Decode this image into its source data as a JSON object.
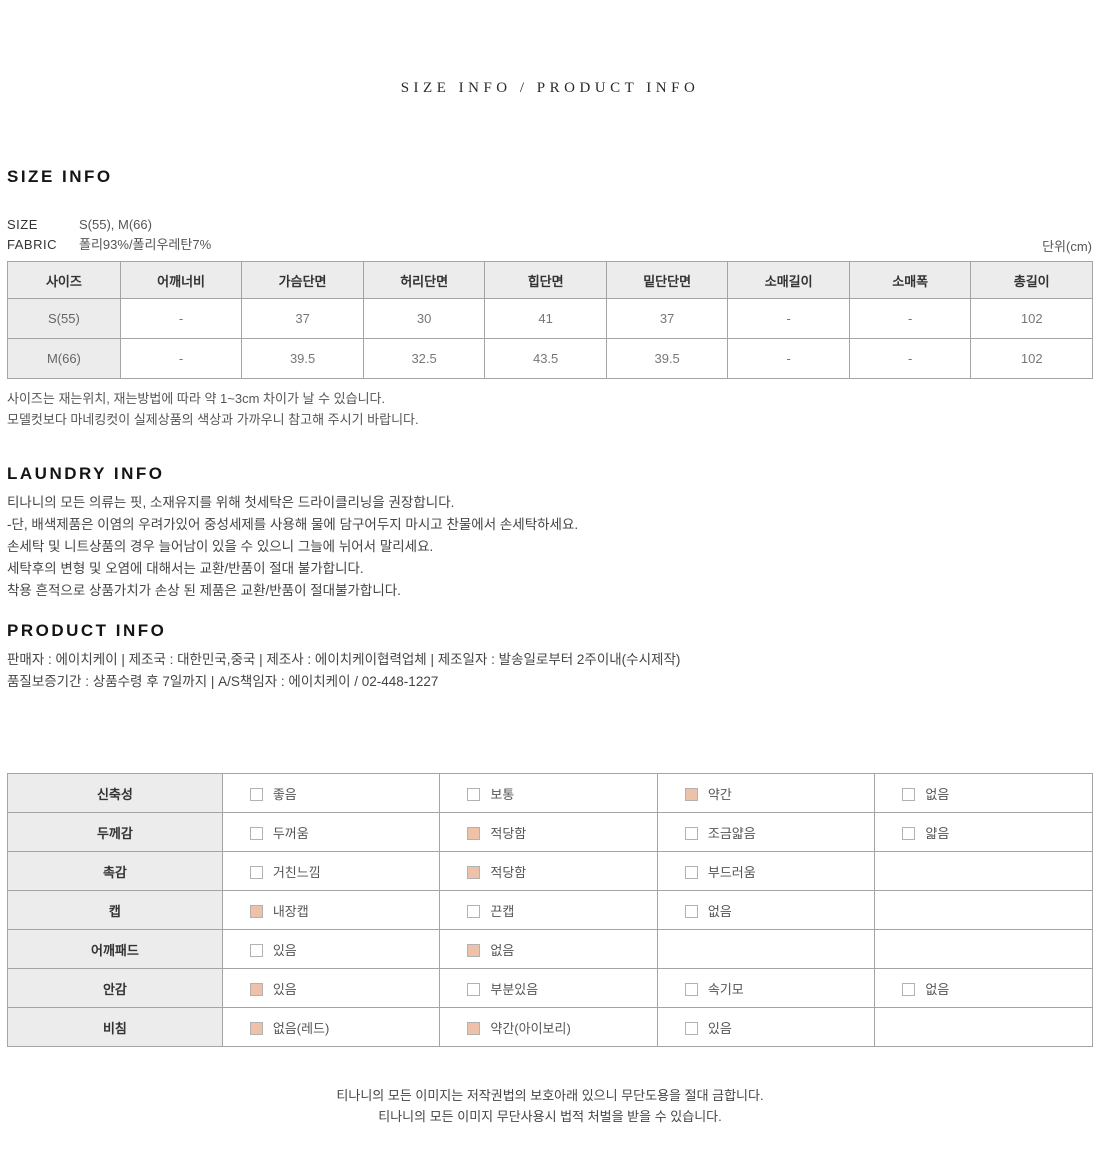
{
  "page_title": "SIZE INFO / PRODUCT INFO",
  "size_info": {
    "heading": "SIZE INFO",
    "size_label": "SIZE",
    "size_value": "S(55), M(66)",
    "fabric_label": "FABRIC",
    "fabric_value": "폴리93%/폴리우레탄7%",
    "unit_note": "단위(cm)",
    "table": {
      "headers": [
        "사이즈",
        "어깨너비",
        "가슴단면",
        "허리단면",
        "힙단면",
        "밑단단면",
        "소매길이",
        "소매폭",
        "총길이"
      ],
      "rows": [
        [
          "S(55)",
          "-",
          "37",
          "30",
          "41",
          "37",
          "-",
          "-",
          "102"
        ],
        [
          "M(66)",
          "-",
          "39.5",
          "32.5",
          "43.5",
          "39.5",
          "-",
          "-",
          "102"
        ]
      ]
    },
    "notes": [
      "사이즈는 재는위치, 재는방법에 따라 약 1~3cm 차이가 날 수 있습니다.",
      "모델컷보다 마네킹컷이 실제상품의 색상과 가까우니 참고해 주시기 바랍니다."
    ]
  },
  "laundry_info": {
    "heading": "LAUNDRY INFO",
    "lines": [
      "티나니의 모든 의류는 핏, 소재유지를 위해 첫세탁은 드라이클리닝을 권장합니다.",
      "-단, 배색제품은 이염의 우려가있어 중성세제를 사용해 물에 담구어두지 마시고 찬물에서 손세탁하세요.",
      "손세탁 및 니트상품의 경우 늘어남이 있을 수 있으니 그늘에 뉘어서 말리세요.",
      "세탁후의 변형 및 오염에 대해서는 교환/반품이 절대 불가합니다.",
      "착용 흔적으로 상품가치가 손상 된 제품은 교환/반품이 절대불가합니다."
    ]
  },
  "product_info": {
    "heading": "PRODUCT INFO",
    "lines": [
      "판매자 : 에이치케이 | 제조국 : 대한민국,중국 | 제조사 : 에이치케이협력업체 | 제조일자 : 발송일로부터 2주이내(수시제작)",
      "품질보증기간 : 상품수령 후 7일까지 | A/S책임자 : 에이치케이 / 02-448-1227"
    ]
  },
  "attributes_table": {
    "rows": [
      {
        "label": "신축성",
        "options": [
          {
            "text": "좋음",
            "checked": false
          },
          {
            "text": "보통",
            "checked": false
          },
          {
            "text": "약간",
            "checked": true
          },
          {
            "text": "없음",
            "checked": false
          }
        ]
      },
      {
        "label": "두께감",
        "options": [
          {
            "text": "두꺼움",
            "checked": false
          },
          {
            "text": "적당함",
            "checked": true
          },
          {
            "text": "조금얇음",
            "checked": false
          },
          {
            "text": "얇음",
            "checked": false
          }
        ]
      },
      {
        "label": "촉감",
        "options": [
          {
            "text": "거친느낌",
            "checked": false
          },
          {
            "text": "적당함",
            "checked": true
          },
          {
            "text": "부드러움",
            "checked": false
          },
          null
        ]
      },
      {
        "label": "캡",
        "options": [
          {
            "text": "내장캡",
            "checked": true
          },
          {
            "text": "끈캡",
            "checked": false
          },
          {
            "text": "없음",
            "checked": false
          },
          null
        ]
      },
      {
        "label": "어깨패드",
        "options": [
          {
            "text": "있음",
            "checked": false
          },
          {
            "text": "없음",
            "checked": true
          },
          null,
          null
        ]
      },
      {
        "label": "안감",
        "options": [
          {
            "text": "있음",
            "checked": true
          },
          {
            "text": "부분있음",
            "checked": false
          },
          {
            "text": "속기모",
            "checked": false
          },
          {
            "text": "없음",
            "checked": false
          }
        ]
      },
      {
        "label": "비침",
        "options": [
          {
            "text": "없음(레드)",
            "checked": true
          },
          {
            "text": "약간(아이보리)",
            "checked": true
          },
          {
            "text": "있음",
            "checked": false
          },
          null
        ]
      }
    ]
  },
  "footer": {
    "lines": [
      "티나니의 모든 이미지는 저작권법의 보호아래 있으니 무단도용을 절대 금합니다.",
      "티나니의 모든 이미지 무단사용시 법적 처벌을 받을 수 있습니다."
    ]
  },
  "colors": {
    "checked_box": "#eec2a9",
    "table_border": "#a4a4a4",
    "header_bg": "#ececec"
  }
}
